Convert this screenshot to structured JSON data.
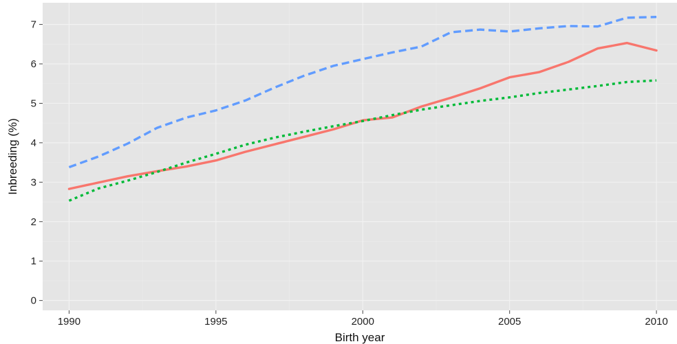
{
  "chart_data": {
    "type": "line",
    "title": "",
    "xlabel": "Birth year",
    "ylabel": "Inbreeding (%)",
    "xlim": [
      1989.1,
      2010.7
    ],
    "ylim": [
      -0.25,
      7.55
    ],
    "x_ticks": [
      1990,
      1995,
      2000,
      2005,
      2010
    ],
    "y_ticks": [
      0,
      1,
      2,
      3,
      4,
      5,
      6,
      7
    ],
    "x_tick_labels": [
      "1990",
      "1995",
      "2000",
      "2005",
      "2010"
    ],
    "y_tick_labels": [
      "0",
      "1",
      "2",
      "3",
      "4",
      "5",
      "6",
      "7"
    ],
    "grid": true,
    "legend": "none",
    "background_color": "#e5e5e5",
    "grid_color": "#f2f2f2",
    "x": [
      1990,
      1991,
      1992,
      1993,
      1994,
      1995,
      1996,
      1997,
      1998,
      1999,
      2000,
      2001,
      2002,
      2003,
      2004,
      2005,
      2006,
      2007,
      2008,
      2009,
      2010
    ],
    "series": [
      {
        "color": "#f8766d",
        "line_style": "solid",
        "values": [
          2.83,
          2.99,
          3.15,
          3.28,
          3.4,
          3.55,
          3.77,
          3.96,
          4.15,
          4.34,
          4.57,
          4.64,
          4.92,
          5.14,
          5.38,
          5.66,
          5.79,
          6.05,
          6.39,
          6.53,
          6.34
        ]
      },
      {
        "color": "#619cff",
        "line_style": "dashed",
        "values": [
          3.38,
          3.65,
          3.98,
          4.38,
          4.64,
          4.82,
          5.07,
          5.4,
          5.7,
          5.95,
          6.12,
          6.29,
          6.44,
          6.8,
          6.87,
          6.82,
          6.9,
          6.96,
          6.95,
          7.17,
          7.19
        ]
      },
      {
        "color": "#00ba38",
        "line_style": "dotted",
        "values": [
          2.53,
          2.84,
          3.04,
          3.26,
          3.5,
          3.72,
          3.95,
          4.13,
          4.28,
          4.42,
          4.55,
          4.7,
          4.84,
          4.95,
          5.06,
          5.15,
          5.26,
          5.35,
          5.44,
          5.54,
          5.58
        ]
      }
    ]
  }
}
